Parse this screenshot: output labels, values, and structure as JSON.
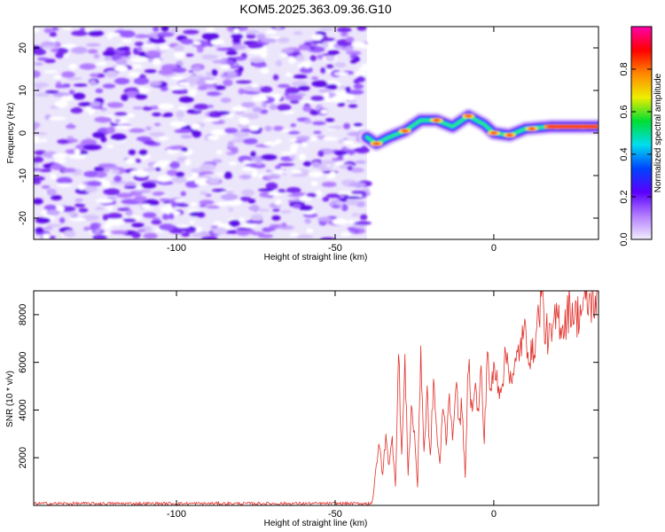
{
  "title": "KOM5.2025.363.09.36.G10",
  "colors": {
    "snr_line": "#e0302a",
    "cmap": [
      "#f2eefc",
      "#b27cff",
      "#5a00ff",
      "#0044ff",
      "#00ddee",
      "#00dd33",
      "#eeee00",
      "#ff8800",
      "#ff0000",
      "#ff00aa"
    ]
  },
  "chart_data": [
    {
      "type": "heatmap",
      "name": "spectrogram",
      "xlabel": "Height of straight line (km)",
      "ylabel": "Frequency (Hz)",
      "xlim": [
        -145,
        33
      ],
      "ylim": [
        -25,
        25
      ],
      "xticks": [
        -100,
        -50,
        0
      ],
      "yticks": [
        -20,
        -10,
        0,
        10,
        20
      ],
      "noise_region_x": [
        -145,
        -40
      ],
      "trace": [
        {
          "x": -40,
          "y": -1
        },
        {
          "x": -37,
          "y": -2.5
        },
        {
          "x": -33,
          "y": -1
        },
        {
          "x": -28,
          "y": 0.5
        },
        {
          "x": -23,
          "y": 3
        },
        {
          "x": -18,
          "y": 3
        },
        {
          "x": -13,
          "y": 1.5
        },
        {
          "x": -8,
          "y": 4
        },
        {
          "x": -3,
          "y": 2
        },
        {
          "x": 0,
          "y": 0
        },
        {
          "x": 5,
          "y": -0.5
        },
        {
          "x": 10,
          "y": 1
        },
        {
          "x": 18,
          "y": 1.5
        },
        {
          "x": 25,
          "y": 1.5
        },
        {
          "x": 33,
          "y": 1.5
        }
      ],
      "colorbar": {
        "label": "Normalized spectral amplitude",
        "range": [
          0,
          1
        ],
        "ticks": [
          "0.0",
          "0.2",
          "0.4",
          "0.6",
          "0.8"
        ]
      }
    },
    {
      "type": "line",
      "name": "snr",
      "xlabel": "Height of straight line (km)",
      "ylabel": "SNR (10 * v/v)",
      "xlim": [
        -145,
        33
      ],
      "ylim": [
        0,
        9000
      ],
      "xticks": [
        -100,
        -50,
        0
      ],
      "yticks": [
        2000,
        4000,
        6000,
        8000
      ],
      "series": [
        {
          "name": "SNR",
          "points": [
            [
              -145,
              80
            ],
            [
              -40,
              80
            ],
            [
              -38,
              200
            ],
            [
              -37,
              1800
            ],
            [
              -36,
              2500
            ],
            [
              -35,
              1200
            ],
            [
              -34,
              3100
            ],
            [
              -33,
              1600
            ],
            [
              -32,
              2800
            ],
            [
              -31,
              900
            ],
            [
              -30,
              6400
            ],
            [
              -29,
              2100
            ],
            [
              -28,
              5900
            ],
            [
              -27,
              1400
            ],
            [
              -26,
              4100
            ],
            [
              -25,
              3000
            ],
            [
              -24,
              800
            ],
            [
              -23,
              6600
            ],
            [
              -22,
              2200
            ],
            [
              -21,
              4700
            ],
            [
              -20,
              1900
            ],
            [
              -19,
              5300
            ],
            [
              -18,
              3100
            ],
            [
              -17,
              1600
            ],
            [
              -16,
              4400
            ],
            [
              -15,
              2700
            ],
            [
              -14,
              4900
            ],
            [
              -13,
              2500
            ],
            [
              -12,
              5500
            ],
            [
              -11,
              3300
            ],
            [
              -10,
              4300
            ],
            [
              -9,
              1000
            ],
            [
              -8,
              6200
            ],
            [
              -7,
              4100
            ],
            [
              -6,
              5200
            ],
            [
              -5,
              3800
            ],
            [
              -4,
              5600
            ],
            [
              -3,
              2600
            ],
            [
              -2,
              6800
            ],
            [
              -1,
              4500
            ],
            [
              0,
              5700
            ],
            [
              2,
              4900
            ],
            [
              4,
              6300
            ],
            [
              6,
              5200
            ],
            [
              8,
              6600
            ],
            [
              10,
              7200
            ],
            [
              12,
              6100
            ],
            [
              14,
              7800
            ],
            [
              15,
              9100
            ],
            [
              16,
              7400
            ],
            [
              18,
              6900
            ],
            [
              20,
              8000
            ],
            [
              22,
              7500
            ],
            [
              24,
              8400
            ],
            [
              26,
              7900
            ],
            [
              28,
              8300
            ],
            [
              30,
              8500
            ],
            [
              33,
              8600
            ]
          ]
        }
      ]
    }
  ]
}
